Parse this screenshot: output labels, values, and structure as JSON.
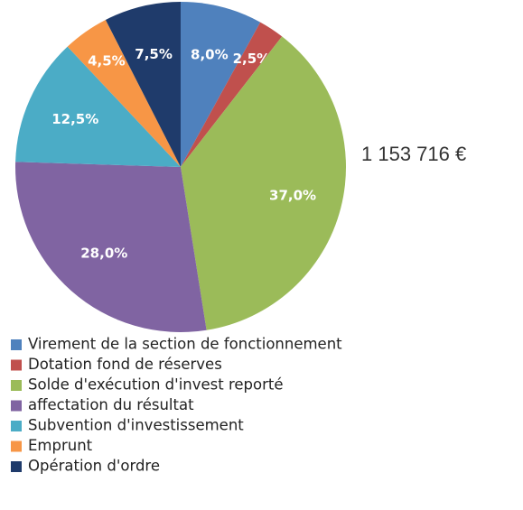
{
  "chart_data": {
    "type": "pie",
    "categories": [
      "Virement de la section de fonctionnement",
      "Dotation fond de réserves",
      "Solde d'exécution d'invest reporté",
      "affectation du résultat",
      "Subvention d'investissement",
      "Emprunt",
      "Opération d'ordre"
    ],
    "values": [
      8.0,
      2.5,
      37.0,
      28.0,
      12.5,
      4.5,
      7.5
    ],
    "value_labels": [
      "8,0%",
      "2,5%",
      "37,0%",
      "28,0%",
      "12,5%",
      "4,5%",
      "7,5%"
    ],
    "colors": [
      "#4f81bd",
      "#c0504d",
      "#9bbb59",
      "#8064a2",
      "#4bacc6",
      "#f79646",
      "#1f3b6b"
    ],
    "annotation": "1 153 716 €"
  }
}
